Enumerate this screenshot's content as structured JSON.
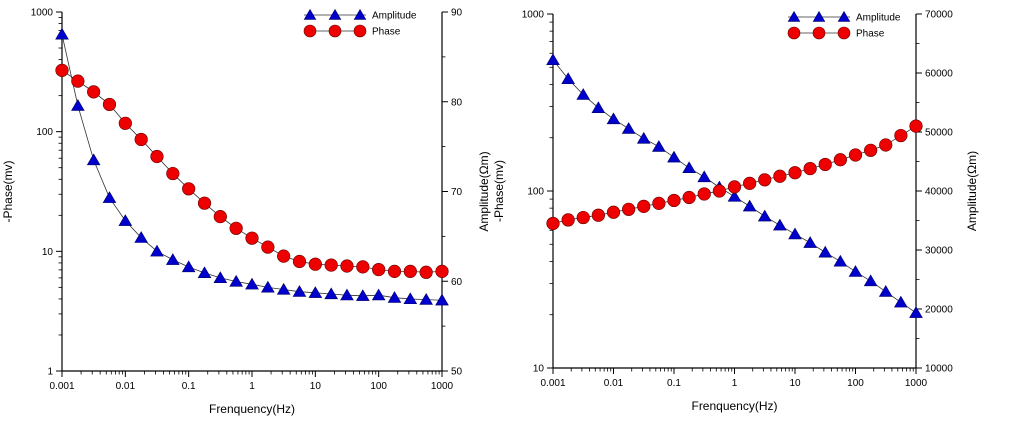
{
  "chart_data": [
    {
      "type": "scatter",
      "xlabel": "Frenquency(Hz)",
      "ylabel_left": "-Phase(mv)",
      "ylabel_right": "Amplitude(Ωm)",
      "x_scale": "log",
      "x_range": [
        0.001,
        1000
      ],
      "x_ticks": [
        "0.001",
        "0.01",
        "0.1",
        "1",
        "10",
        "100",
        "1000"
      ],
      "y_left_scale": "log",
      "y_left_range": [
        1,
        1000
      ],
      "y_left_ticks": [
        "1",
        "10",
        "100",
        "1000"
      ],
      "y_right_scale": "linear",
      "y_right_range": [
        50,
        90
      ],
      "y_right_ticks": [
        "50",
        "60",
        "70",
        "80",
        "90"
      ],
      "legend_position": "top-right",
      "series": [
        {
          "name": "Amplitude",
          "marker": "triangle",
          "color": "#0000cc",
          "axis": "left",
          "x": [
            0.001,
            0.00178,
            0.00316,
            0.00562,
            0.01,
            0.0178,
            0.0316,
            0.0562,
            0.1,
            0.178,
            0.316,
            0.562,
            1,
            1.78,
            3.16,
            5.62,
            10,
            17.8,
            31.6,
            56.2,
            100,
            178,
            316,
            562,
            1000
          ],
          "y": [
            650,
            165,
            58,
            28,
            18,
            13,
            10,
            8.5,
            7.4,
            6.6,
            6.0,
            5.6,
            5.3,
            5.0,
            4.8,
            4.6,
            4.5,
            4.4,
            4.3,
            4.25,
            4.3,
            4.1,
            4.0,
            3.95,
            3.9
          ]
        },
        {
          "name": "Phase",
          "marker": "circle",
          "color": "#ee0000",
          "axis": "right",
          "x": [
            0.001,
            0.00178,
            0.00316,
            0.00562,
            0.01,
            0.0178,
            0.0316,
            0.0562,
            0.1,
            0.178,
            0.316,
            0.562,
            1,
            1.78,
            3.16,
            5.62,
            10,
            17.8,
            31.6,
            56.2,
            100,
            178,
            316,
            562,
            1000
          ],
          "y": [
            83.5,
            82.3,
            81.1,
            79.7,
            77.6,
            75.8,
            73.9,
            72.0,
            70.3,
            68.7,
            67.2,
            65.9,
            64.8,
            63.8,
            62.8,
            62.2,
            61.9,
            61.8,
            61.7,
            61.6,
            61.3,
            61.1,
            61.1,
            61.0,
            61.1
          ]
        }
      ]
    },
    {
      "type": "scatter",
      "xlabel": "Frenquency(Hz)",
      "ylabel_left": "-Phase(mv)",
      "ylabel_right": "Amplitude(Ωm)",
      "x_scale": "log",
      "x_range": [
        0.001,
        1000
      ],
      "x_ticks": [
        "0.001",
        "0.01",
        "0.1",
        "1",
        "10",
        "100",
        "1000"
      ],
      "y_left_scale": "log",
      "y_left_range": [
        10,
        1000
      ],
      "y_left_ticks": [
        "10",
        "100",
        "1000"
      ],
      "y_right_scale": "linear",
      "y_right_range": [
        10000,
        70000
      ],
      "y_right_ticks": [
        "10000",
        "20000",
        "30000",
        "40000",
        "50000",
        "60000",
        "70000"
      ],
      "legend_position": "top-right",
      "series": [
        {
          "name": "Amplitude",
          "marker": "triangle",
          "color": "#0000cc",
          "axis": "left",
          "x": [
            0.001,
            0.00178,
            0.00316,
            0.00562,
            0.01,
            0.0178,
            0.0316,
            0.0562,
            0.1,
            0.178,
            0.316,
            0.562,
            1,
            1.78,
            3.16,
            5.62,
            10,
            17.8,
            31.6,
            56.2,
            100,
            178,
            316,
            562,
            1000
          ],
          "y": [
            550,
            430,
            350,
            295,
            255,
            225,
            198,
            178,
            155,
            135,
            120,
            105,
            93,
            82,
            72,
            64,
            57,
            51,
            45,
            40,
            35,
            31,
            27,
            23.5,
            20.5
          ]
        },
        {
          "name": "Phase",
          "marker": "circle",
          "color": "#ee0000",
          "axis": "right",
          "x": [
            0.001,
            0.00178,
            0.00316,
            0.00562,
            0.01,
            0.0178,
            0.0316,
            0.0562,
            0.1,
            0.178,
            0.316,
            0.562,
            1,
            1.78,
            3.16,
            5.62,
            10,
            17.8,
            31.6,
            56.2,
            100,
            178,
            316,
            562,
            1000
          ],
          "y": [
            34500,
            35100,
            35500,
            35900,
            36400,
            36900,
            37400,
            37900,
            38400,
            38900,
            39500,
            40000,
            40700,
            41300,
            41900,
            42500,
            43100,
            43800,
            44500,
            45300,
            46100,
            46900,
            47800,
            49400,
            51000
          ]
        }
      ]
    }
  ]
}
